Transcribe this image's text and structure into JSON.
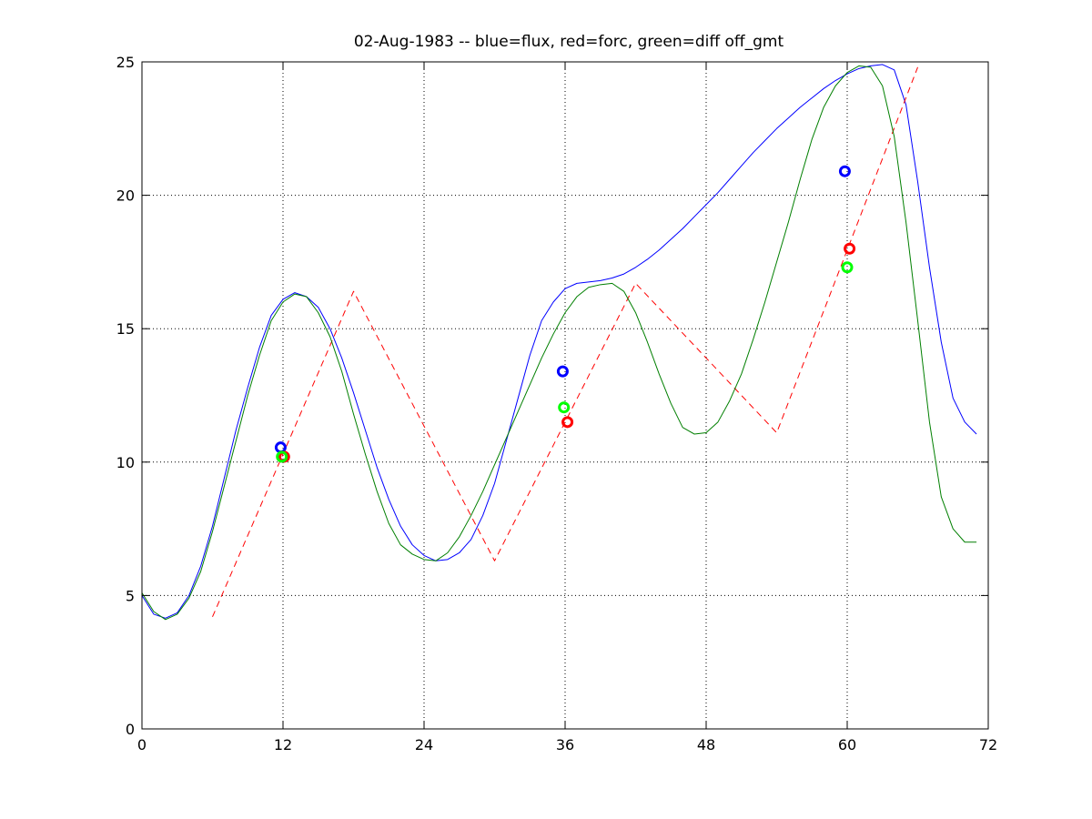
{
  "chart_data": {
    "type": "line",
    "title": "02-Aug-1983 -- blue=flux, red=forc, green=diff off_gmt",
    "xlabel": "",
    "ylabel": "",
    "xlim": [
      0,
      72
    ],
    "ylim": [
      0,
      25
    ],
    "xticks": [
      0,
      12,
      24,
      36,
      48,
      60,
      72
    ],
    "yticks": [
      0,
      5,
      10,
      15,
      20,
      25
    ],
    "grid": true,
    "series": [
      {
        "color": "#0000ff",
        "style": "solid",
        "x": [
          0,
          1,
          2,
          3,
          4,
          5,
          6,
          7,
          8,
          9,
          10,
          11,
          12,
          13,
          14,
          15,
          16,
          17,
          18,
          19,
          20,
          21,
          22,
          23,
          24,
          25,
          26,
          27,
          28,
          29,
          30,
          31,
          32,
          33,
          34,
          35,
          36,
          37,
          38,
          39,
          40,
          41,
          42,
          43,
          44,
          45,
          46,
          47,
          48,
          49,
          50,
          51,
          52,
          53,
          54,
          55,
          56,
          57,
          58,
          59,
          60,
          61,
          62,
          63,
          64,
          65,
          66,
          67,
          68,
          69,
          70,
          71
        ],
        "y": [
          5.0,
          4.3,
          4.15,
          4.35,
          5.0,
          6.1,
          7.6,
          9.4,
          11.2,
          12.8,
          14.3,
          15.5,
          16.1,
          16.35,
          16.2,
          15.8,
          15.0,
          13.9,
          12.6,
          11.2,
          9.8,
          8.6,
          7.6,
          6.9,
          6.5,
          6.3,
          6.35,
          6.6,
          7.1,
          8.0,
          9.2,
          10.8,
          12.4,
          14.0,
          15.3,
          16.0,
          16.5,
          16.7,
          16.75,
          16.8,
          16.9,
          17.05,
          17.3,
          17.6,
          17.95,
          18.35,
          18.75,
          19.2,
          19.65,
          20.1,
          20.6,
          21.1,
          21.6,
          22.05,
          22.5,
          22.9,
          23.3,
          23.65,
          24.0,
          24.3,
          24.55,
          24.75,
          24.85,
          24.9,
          24.7,
          23.4,
          20.5,
          17.3,
          14.5,
          12.4,
          11.5,
          11.05
        ]
      },
      {
        "color": "#ff0000",
        "style": "dashed",
        "x": [
          6,
          18,
          30,
          42,
          54,
          66
        ],
        "y": [
          4.2,
          16.4,
          6.3,
          16.7,
          11.1,
          24.8
        ]
      },
      {
        "color": "#007f00",
        "style": "solid",
        "x": [
          0,
          1,
          2,
          3,
          4,
          5,
          6,
          7,
          8,
          9,
          10,
          11,
          12,
          13,
          14,
          15,
          16,
          17,
          18,
          19,
          20,
          21,
          22,
          23,
          24,
          25,
          26,
          27,
          28,
          29,
          30,
          31,
          32,
          33,
          34,
          35,
          36,
          37,
          38,
          39,
          40,
          41,
          42,
          43,
          44,
          45,
          46,
          47,
          48,
          49,
          50,
          51,
          52,
          53,
          54,
          55,
          56,
          57,
          58,
          59,
          60,
          61,
          62,
          63,
          64,
          65,
          66,
          67,
          68,
          69,
          70,
          71
        ],
        "y": [
          5.1,
          4.4,
          4.1,
          4.3,
          4.9,
          5.9,
          7.4,
          9.1,
          10.8,
          12.5,
          14.0,
          15.3,
          16.0,
          16.3,
          16.2,
          15.6,
          14.7,
          13.4,
          11.8,
          10.3,
          8.9,
          7.7,
          6.9,
          6.55,
          6.35,
          6.3,
          6.6,
          7.2,
          8.0,
          8.9,
          9.9,
          10.9,
          11.9,
          12.9,
          13.9,
          14.8,
          15.6,
          16.2,
          16.55,
          16.65,
          16.7,
          16.4,
          15.6,
          14.5,
          13.3,
          12.2,
          11.3,
          11.05,
          11.1,
          11.5,
          12.3,
          13.3,
          14.6,
          16.0,
          17.5,
          19.0,
          20.6,
          22.1,
          23.3,
          24.1,
          24.6,
          24.85,
          24.8,
          24.1,
          22.2,
          19.0,
          15.3,
          11.5,
          8.7,
          7.5,
          7.0,
          7.0
        ]
      }
    ],
    "markers": [
      {
        "color": "#0000ff",
        "x": 11.8,
        "y": 10.55
      },
      {
        "color": "#ff0000",
        "x": 12.1,
        "y": 10.2
      },
      {
        "color": "#00ff00",
        "x": 11.9,
        "y": 10.2
      },
      {
        "color": "#0000ff",
        "x": 35.8,
        "y": 13.4
      },
      {
        "color": "#00ff00",
        "x": 35.9,
        "y": 12.05
      },
      {
        "color": "#ff0000",
        "x": 36.2,
        "y": 11.5
      },
      {
        "color": "#0000ff",
        "x": 59.8,
        "y": 20.9
      },
      {
        "color": "#ff0000",
        "x": 60.2,
        "y": 18.0
      },
      {
        "color": "#00ff00",
        "x": 60.0,
        "y": 17.3
      }
    ]
  }
}
